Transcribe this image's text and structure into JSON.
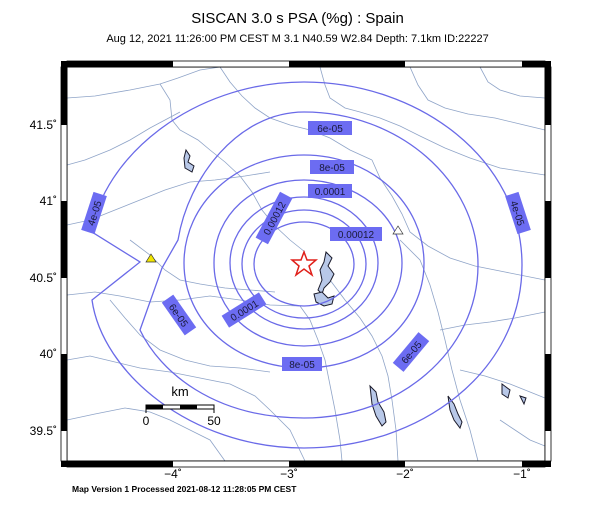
{
  "title": "SISCAN 3.0 s PSA (%g) : Spain",
  "subtitle": "Aug 12, 2021 11:26:00 PM CEST   M 3.1   N40.59 W2.84   Depth: 7.1km   ID:22227",
  "footer": "Map Version 1 Processed 2021-08-12 11:28:05 PM CEST",
  "scale_bar": {
    "unit": "km",
    "start": "0",
    "end": "50"
  },
  "lon_ticks": [
    "−4˚",
    "−3˚",
    "−2˚",
    "−1˚"
  ],
  "lat_ticks": [
    "41.5˚",
    "41˚",
    "40.5˚",
    "40˚",
    "39.5˚"
  ],
  "contour_labels": [
    "6e-05",
    "8e-05",
    "0.0001",
    "0.00012",
    "0.00012",
    "4e-05",
    "4e-05",
    "6e-05",
    "0.0001",
    "8e-05",
    "6e-05"
  ],
  "markers": {
    "epicenter": "star",
    "station_yellow": "triangle",
    "station_white": "triangle"
  },
  "colors": {
    "contour": "#6a6ae8",
    "label_bg": "#6c6cf2",
    "rivers": "#8fa4c8",
    "epicenter": "#e0201a",
    "station": "#f2e600",
    "water": "#b8c8e8"
  }
}
